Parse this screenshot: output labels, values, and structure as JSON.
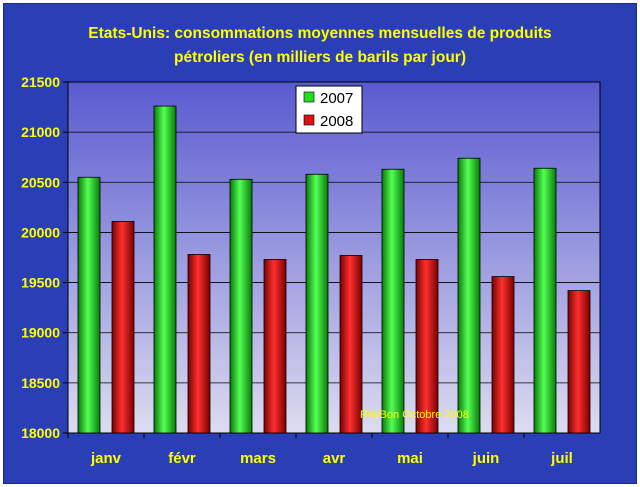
{
  "chart_data": {
    "type": "bar",
    "title_line1": "Etats-Unis: consommations moyennes mensuelles de produits",
    "title_line2": "pétroliers (en milliers de barils par jour)",
    "categories": [
      "janv",
      "févr",
      "mars",
      "avr",
      "mai",
      "juin",
      "juil"
    ],
    "series": [
      {
        "name": "2007",
        "color": "#22dd22",
        "values": [
          20550,
          21260,
          20530,
          20580,
          20630,
          20740,
          20640
        ]
      },
      {
        "name": "2008",
        "color": "#dd1111",
        "values": [
          20110,
          19780,
          19730,
          19770,
          19730,
          19560,
          19420
        ]
      }
    ],
    "ylim": [
      18000,
      21500
    ],
    "yticks": [
      "18000",
      "18500",
      "19000",
      "19500",
      "20000",
      "20500",
      "21000",
      "21500"
    ],
    "grid": true,
    "legend_position": "top-center",
    "annotation": "RayBon Octobre 2008",
    "colors": {
      "background": "#2a3fb6",
      "text": "#ffff00",
      "plot_top": "#5a5ad0",
      "plot_bottom": "#dcdcf0"
    }
  }
}
